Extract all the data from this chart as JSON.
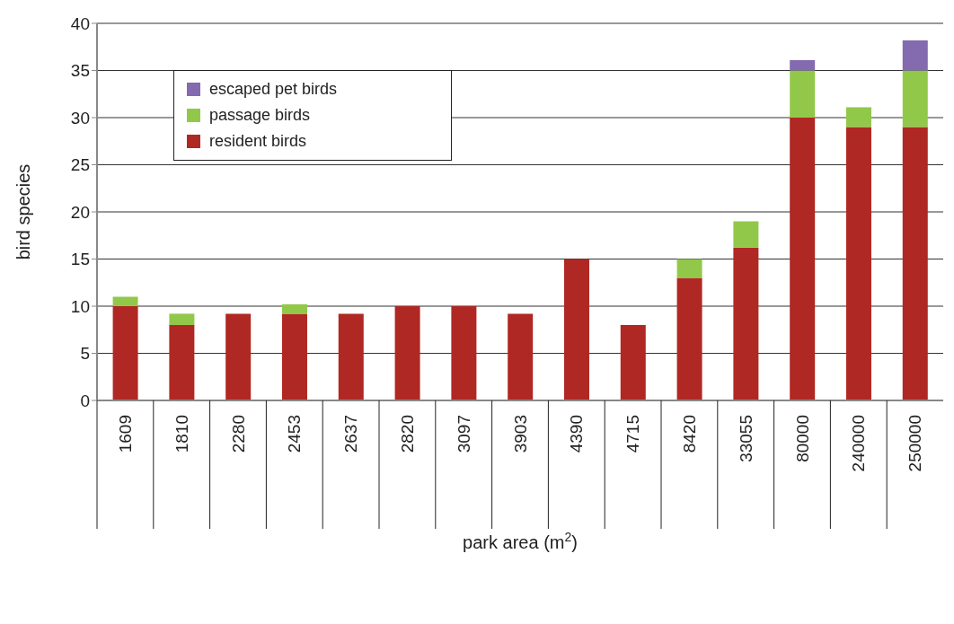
{
  "chart_data": {
    "type": "bar",
    "xlabel": "park area (m$^{2}$)",
    "ylabel": "bird species",
    "categories": [
      "1609",
      "1810",
      "2280",
      "2453",
      "2637",
      "2820",
      "3097",
      "3903",
      "4390",
      "4715",
      "8420",
      "33055",
      "80000",
      "240000",
      "250000"
    ],
    "stacked": true,
    "ylim": [
      0,
      40
    ],
    "yticks": [
      0,
      5,
      10,
      15,
      20,
      25,
      30,
      35,
      40
    ],
    "grid": "y",
    "legend": "top left",
    "series": [
      {
        "name": "resident birds",
        "color": "#b02823",
        "values": [
          10,
          8,
          9.2,
          9.2,
          9.2,
          10,
          10,
          9.2,
          15,
          8,
          13,
          16.2,
          30,
          29,
          29
        ]
      },
      {
        "name": "passage birds",
        "color": "#92c84a",
        "values": [
          1,
          1.2,
          0,
          1,
          0,
          0,
          0,
          0,
          0,
          0,
          2,
          2.8,
          5,
          2.1,
          6
        ]
      },
      {
        "name": "escaped pet birds",
        "color": "#846aae",
        "values": [
          0,
          0,
          0,
          0,
          0,
          0,
          0,
          0,
          0,
          0,
          0,
          0,
          1.1,
          0,
          3.2
        ]
      }
    ]
  }
}
